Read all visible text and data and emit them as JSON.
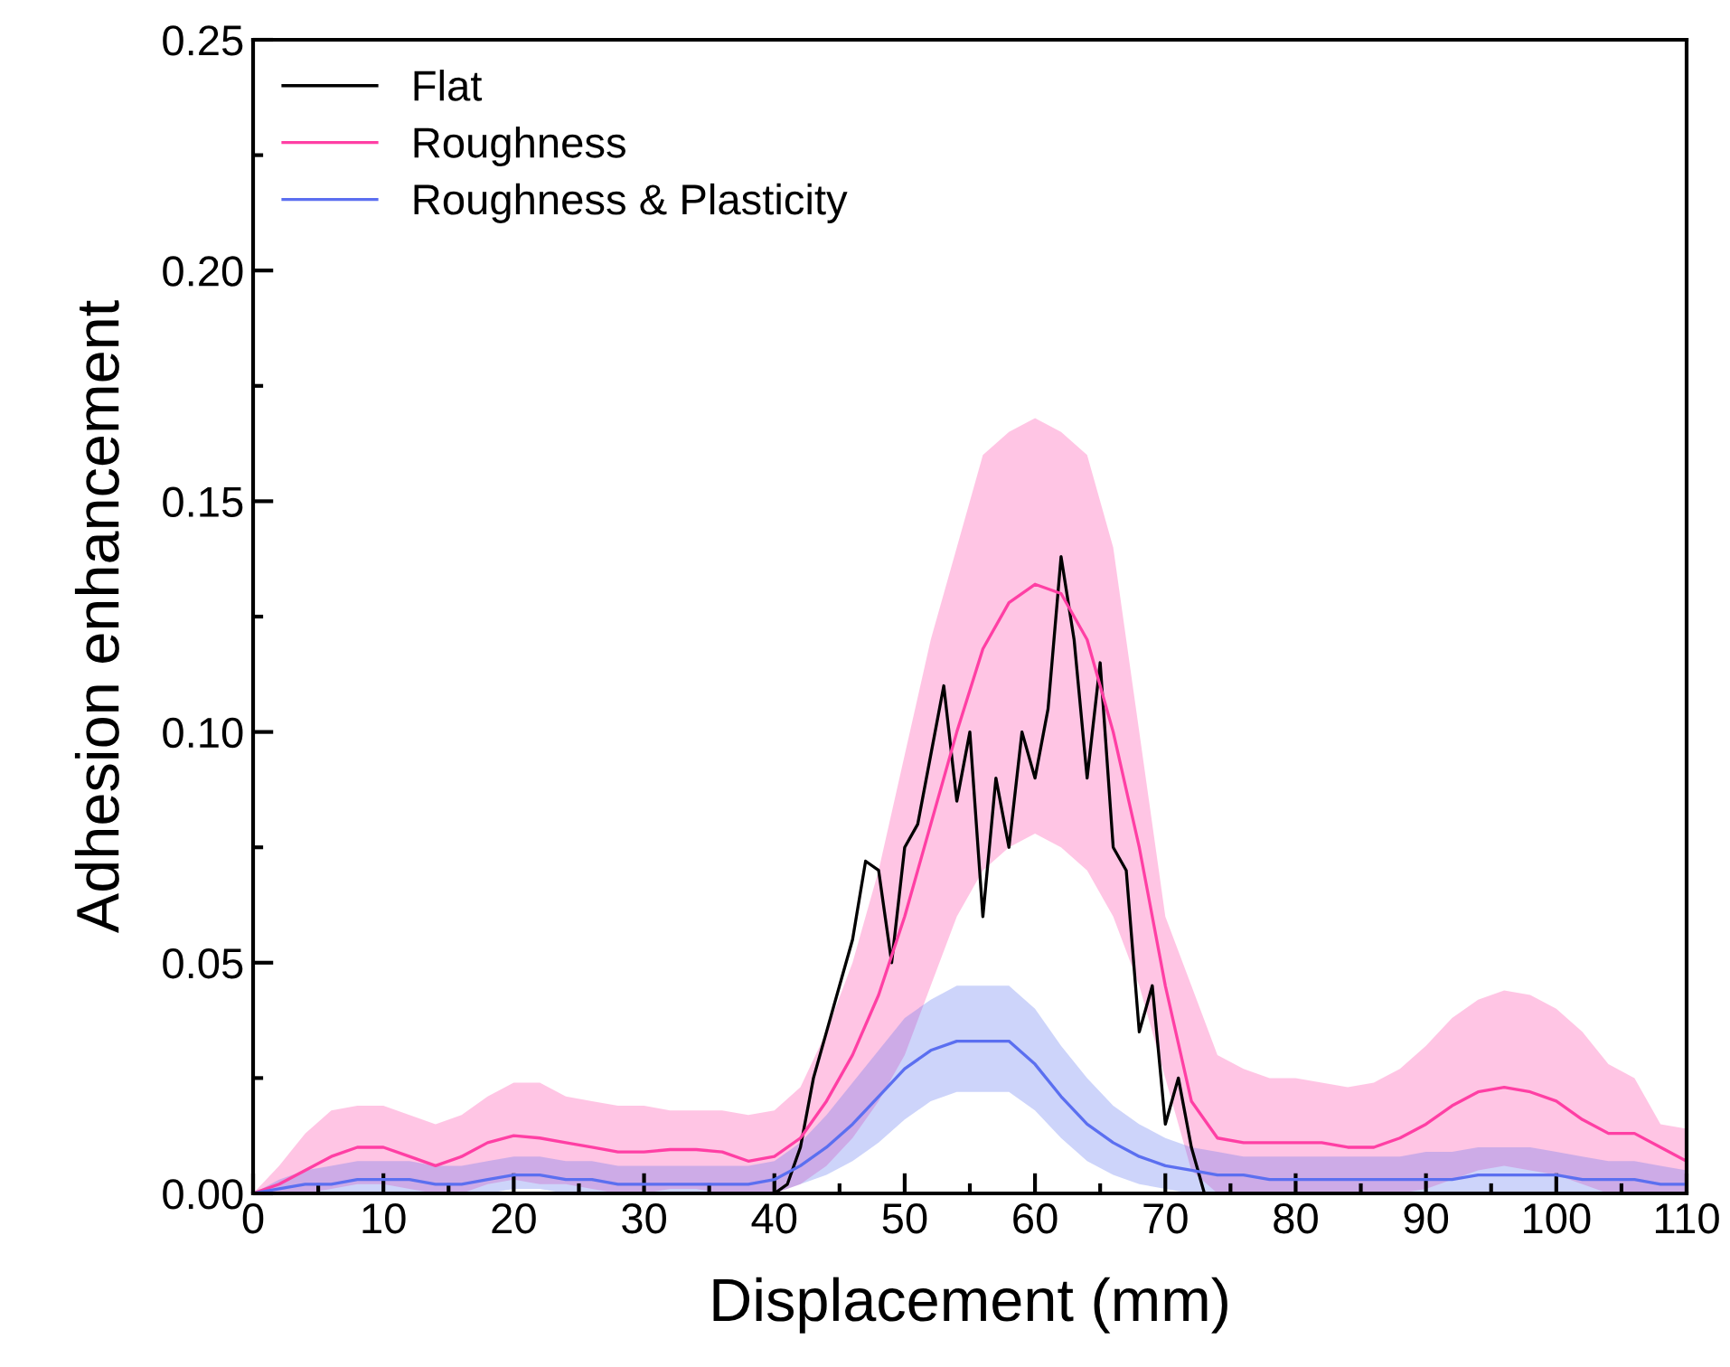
{
  "chart_data": {
    "type": "line",
    "xlabel": "Displacement (mm)",
    "ylabel": "Adhesion enhancement",
    "x": [
      0,
      2,
      4,
      6,
      8,
      10,
      12,
      14,
      16,
      18,
      20,
      22,
      24,
      26,
      28,
      30,
      32,
      34,
      36,
      38,
      40,
      42,
      44,
      46,
      48,
      50,
      52,
      54,
      56,
      58,
      60,
      62,
      64,
      66,
      68,
      70,
      72,
      74,
      76,
      78,
      80,
      82,
      84,
      86,
      88,
      90,
      92,
      94,
      96,
      98,
      100,
      102,
      104,
      106,
      108,
      110
    ],
    "series": [
      {
        "name": "Flat",
        "color": "#000000",
        "x": [
          0,
          40,
          41,
          42,
          43,
          44,
          45,
          46,
          47,
          48,
          49,
          50,
          51,
          52,
          53,
          54,
          55,
          56,
          57,
          58,
          59,
          60,
          61,
          62,
          63,
          64,
          65,
          66,
          67,
          68,
          69,
          70,
          71,
          72,
          73,
          110
        ],
        "values": [
          0,
          0,
          0.002,
          0.01,
          0.025,
          0.035,
          0.045,
          0.055,
          0.072,
          0.07,
          0.05,
          0.075,
          0.08,
          0.095,
          0.11,
          0.085,
          0.1,
          0.06,
          0.09,
          0.075,
          0.1,
          0.09,
          0.105,
          0.138,
          0.12,
          0.09,
          0.115,
          0.075,
          0.07,
          0.035,
          0.045,
          0.015,
          0.025,
          0.01,
          0,
          0
        ]
      },
      {
        "name": "Roughness",
        "color": "#ff3fa4",
        "values": [
          0,
          0.002,
          0.005,
          0.008,
          0.01,
          0.01,
          0.008,
          0.006,
          0.008,
          0.011,
          0.0125,
          0.012,
          0.011,
          0.01,
          0.009,
          0.009,
          0.0095,
          0.0095,
          0.009,
          0.007,
          0.008,
          0.012,
          0.02,
          0.03,
          0.043,
          0.06,
          0.08,
          0.1,
          0.118,
          0.128,
          0.132,
          0.13,
          0.12,
          0.1,
          0.075,
          0.045,
          0.02,
          0.012,
          0.011,
          0.011,
          0.011,
          0.011,
          0.01,
          0.01,
          0.012,
          0.015,
          0.019,
          0.022,
          0.023,
          0.022,
          0.02,
          0.016,
          0.013,
          0.013,
          0.01,
          0.007
        ],
        "upper": [
          0,
          0.006,
          0.013,
          0.018,
          0.019,
          0.019,
          0.017,
          0.015,
          0.017,
          0.021,
          0.024,
          0.024,
          0.021,
          0.02,
          0.019,
          0.019,
          0.018,
          0.018,
          0.018,
          0.017,
          0.018,
          0.023,
          0.035,
          0.05,
          0.07,
          0.095,
          0.12,
          0.14,
          0.16,
          0.165,
          0.168,
          0.165,
          0.16,
          0.14,
          0.1,
          0.06,
          0.045,
          0.03,
          0.027,
          0.025,
          0.025,
          0.024,
          0.023,
          0.024,
          0.027,
          0.032,
          0.038,
          0.042,
          0.044,
          0.043,
          0.04,
          0.035,
          0.028,
          0.025,
          0.015,
          0.014
        ],
        "lower": [
          0,
          0,
          0,
          0.001,
          0.002,
          0.002,
          0.001,
          0,
          0,
          0.002,
          0.003,
          0.002,
          0.002,
          0.001,
          0,
          0,
          0.001,
          0.001,
          0,
          0,
          0,
          0.002,
          0.006,
          0.012,
          0.02,
          0.03,
          0.045,
          0.06,
          0.07,
          0.075,
          0.078,
          0.075,
          0.07,
          0.06,
          0.045,
          0.025,
          0.005,
          0,
          0,
          0,
          0,
          0,
          0,
          0,
          0,
          0.001,
          0.003,
          0.005,
          0.006,
          0.005,
          0.004,
          0.002,
          0,
          0,
          0,
          0
        ]
      },
      {
        "name": "Roughness & Plasticity",
        "color": "#5b6ff0",
        "values": [
          0,
          0.001,
          0.002,
          0.002,
          0.003,
          0.003,
          0.003,
          0.002,
          0.002,
          0.003,
          0.004,
          0.004,
          0.003,
          0.003,
          0.002,
          0.002,
          0.002,
          0.002,
          0.002,
          0.002,
          0.003,
          0.006,
          0.01,
          0.015,
          0.021,
          0.027,
          0.031,
          0.033,
          0.033,
          0.033,
          0.028,
          0.021,
          0.015,
          0.011,
          0.008,
          0.006,
          0.005,
          0.004,
          0.004,
          0.003,
          0.003,
          0.003,
          0.003,
          0.003,
          0.003,
          0.003,
          0.003,
          0.004,
          0.004,
          0.004,
          0.004,
          0.003,
          0.003,
          0.003,
          0.002,
          0.002
        ],
        "upper": [
          0,
          0.003,
          0.005,
          0.006,
          0.007,
          0.007,
          0.007,
          0.006,
          0.006,
          0.007,
          0.008,
          0.008,
          0.007,
          0.007,
          0.006,
          0.006,
          0.006,
          0.006,
          0.006,
          0.006,
          0.007,
          0.011,
          0.017,
          0.024,
          0.031,
          0.038,
          0.042,
          0.045,
          0.045,
          0.045,
          0.04,
          0.032,
          0.025,
          0.019,
          0.015,
          0.012,
          0.01,
          0.009,
          0.008,
          0.008,
          0.008,
          0.008,
          0.008,
          0.008,
          0.008,
          0.009,
          0.009,
          0.01,
          0.01,
          0.01,
          0.009,
          0.008,
          0.007,
          0.007,
          0.006,
          0.005
        ],
        "lower": [
          0,
          0,
          0,
          0,
          0,
          0,
          0,
          0,
          0,
          0,
          0.001,
          0.001,
          0,
          0,
          0,
          0,
          0,
          0,
          0,
          0,
          0,
          0.002,
          0.004,
          0.007,
          0.011,
          0.016,
          0.02,
          0.022,
          0.022,
          0.022,
          0.018,
          0.012,
          0.007,
          0.004,
          0.002,
          0.001,
          0,
          0,
          0,
          0,
          0,
          0,
          0,
          0,
          0,
          0,
          0,
          0,
          0,
          0,
          0,
          0,
          0,
          0,
          0,
          0
        ]
      }
    ],
    "xlim": [
      0,
      110
    ],
    "xticks": [
      0,
      10,
      20,
      30,
      40,
      50,
      60,
      70,
      80,
      90,
      100,
      110
    ],
    "ylim": [
      0,
      0.25
    ],
    "yticks": [
      {
        "value": 0,
        "label": "0.00"
      },
      {
        "value": 0.05,
        "label": "0.05"
      },
      {
        "value": 0.1,
        "label": "0.10"
      },
      {
        "value": 0.15,
        "label": "0.15"
      },
      {
        "value": 0.2,
        "label": "0.20"
      },
      {
        "value": 0.25,
        "label": "0.25"
      }
    ],
    "grid": false,
    "legend": "top left",
    "marker": "none",
    "line_style": "solid"
  }
}
